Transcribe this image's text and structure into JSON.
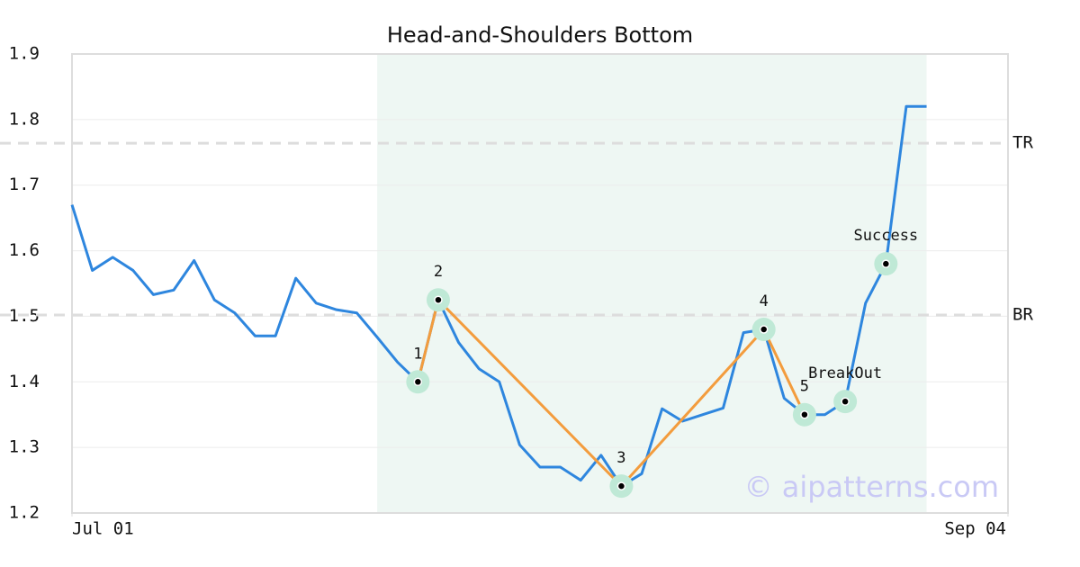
{
  "chart_data": {
    "type": "line",
    "title": "Head-and-Shoulders Bottom",
    "values": [
      1.67,
      1.57,
      1.59,
      1.57,
      1.533,
      1.54,
      1.585,
      1.525,
      1.505,
      1.47,
      1.47,
      1.558,
      1.52,
      1.51,
      1.505,
      1.468,
      1.43,
      1.4,
      1.525,
      1.46,
      1.42,
      1.4,
      1.304,
      1.27,
      1.27,
      1.25,
      1.288,
      1.241,
      1.26,
      1.359,
      1.34,
      1.35,
      1.36,
      1.475,
      1.48,
      1.375,
      1.35,
      1.35,
      1.37,
      1.52,
      1.58,
      1.82,
      1.82
    ],
    "color": "#2e86de",
    "xlim": [
      0,
      46
    ],
    "xticks": [
      {
        "value": 0,
        "label": "Jul 01"
      },
      {
        "value": 46,
        "label": "Sep 04"
      }
    ],
    "ylim": [
      1.2,
      1.9
    ],
    "yticks": [
      1.2,
      1.3,
      1.4,
      1.5,
      1.6,
      1.7,
      1.8,
      1.9
    ],
    "grid": true,
    "highlight_range": [
      15,
      42
    ],
    "levels": [
      {
        "label": "TR",
        "value": 1.764
      },
      {
        "label": "BR",
        "value": 1.502
      }
    ],
    "pattern": {
      "color": "#f39c3d",
      "points": [
        {
          "label": "1",
          "x": 17,
          "value": 1.4
        },
        {
          "label": "2",
          "x": 18,
          "value": 1.525
        },
        {
          "label": "3",
          "x": 27,
          "value": 1.241
        },
        {
          "label": "4",
          "x": 34,
          "value": 1.48
        },
        {
          "label": "5",
          "x": 36,
          "value": 1.35
        }
      ]
    },
    "markers": [
      {
        "label": "BreakOut",
        "x": 38,
        "value": 1.37
      },
      {
        "label": "Success",
        "x": 40,
        "value": 1.58
      }
    ],
    "watermark": "© aipatterns.com"
  }
}
